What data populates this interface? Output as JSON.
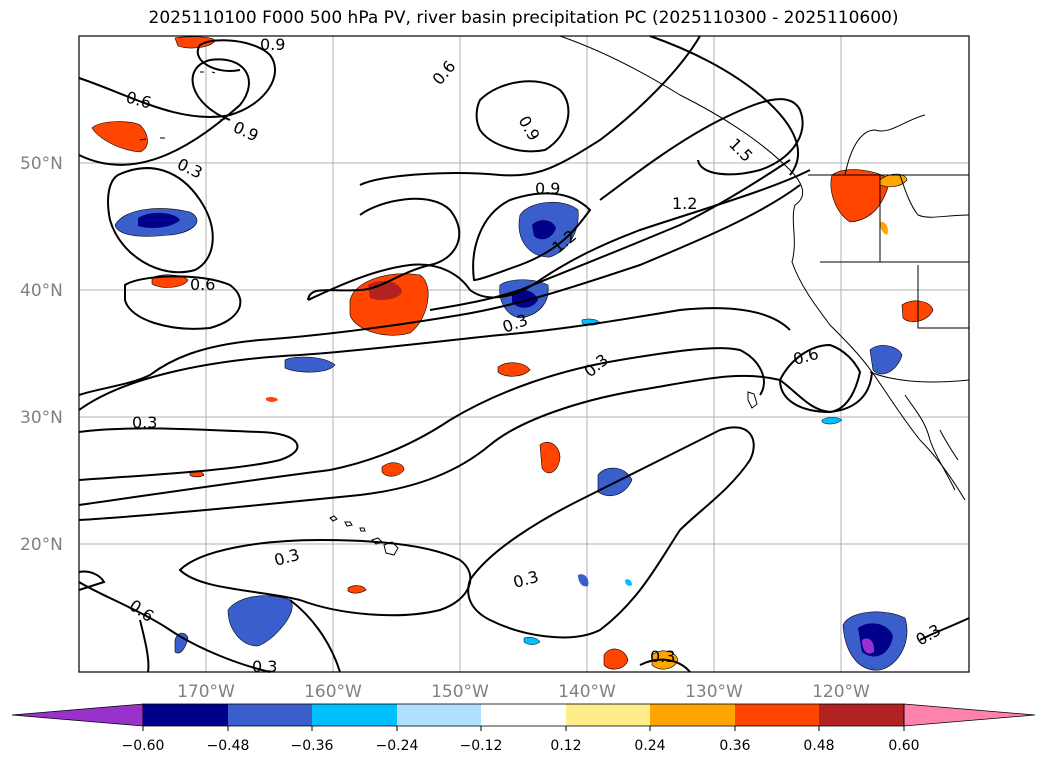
{
  "title": "2025110100 F000 500 hPa PV, river basin precipitation PC (2025110300 - 2025110600)",
  "map": {
    "lat_labels": [
      "50°N",
      "40°N",
      "30°N",
      "20°N"
    ],
    "lon_labels": [
      "170°W",
      "160°W",
      "150°W",
      "140°W",
      "130°W",
      "120°W"
    ],
    "contour_labels": [
      "0.9",
      "0.6",
      "0.9",
      "0.6",
      "0.9",
      "0.3",
      "0.9",
      "1.2",
      "1.5",
      "1.2",
      "0.6",
      "0.3",
      "0.3",
      "0.6",
      "0.3",
      "0.3",
      "0.3",
      "0.6",
      "0.3",
      "0.3",
      "0.3"
    ],
    "colors": {
      "contour": "#000000",
      "grid": "#b0b0b0",
      "coast": "#000000"
    }
  },
  "colorbar": {
    "ticks": [
      "−0.60",
      "−0.48",
      "−0.36",
      "−0.24",
      "−0.12",
      "0.12",
      "0.24",
      "0.36",
      "0.48",
      "0.60"
    ],
    "colors": [
      "#9932cc",
      "#00008b",
      "#3a5fcd",
      "#00bfff",
      "#b0e2ff",
      "#ffffff",
      "#ffec8b",
      "#ffa500",
      "#ff4500",
      "#b22222",
      "#ff82ab"
    ]
  }
}
